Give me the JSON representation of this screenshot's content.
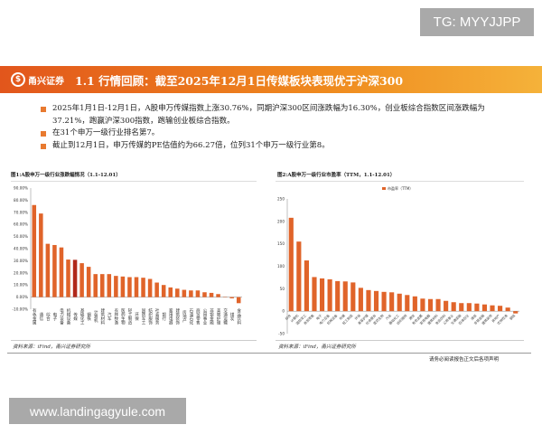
{
  "watermark_top": "TG: MYYJJPP",
  "watermark_bottom": "www.landingagyule.com",
  "header": {
    "logo_text": "甬兴证券",
    "logo_glyph": "$",
    "title": "1.1 行情回顾：截至2025年12月1日传媒板块表现优于沪深300"
  },
  "bullets": [
    "2025年1月1日-12月1日，A股申万传媒指数上涨30.76%，同期沪深300区间涨跌幅为16.30%，创业板综合指数区间涨跌幅为37.21%，跑赢沪深300指数，跑输创业板综合指数。",
    "在31个申万一级行业排名第7。",
    "截止到12月1日，申万传媒的PE估值约为66.27倍，位列31个申万一级行业第8。"
  ],
  "footer": "请务必阅读报告正文后各项声明",
  "colors": {
    "bar": "#e0642a",
    "highlight": "#b0281a",
    "header_start": "#e2561c",
    "header_end": "#f5b23a"
  },
  "chart_data": [
    {
      "type": "bar",
      "title": "图1:A股申万一级行业涨跌幅情况（1.1-12.01）",
      "source": "资料来源：iFind，甬兴证券研究所",
      "ylim": [
        -10,
        90
      ],
      "yticks": [
        "-10.00%",
        "0.00%",
        "10.00%",
        "20.00%",
        "30.00%",
        "40.00%",
        "50.00%",
        "60.00%",
        "70.00%",
        "80.00%",
        "90.00%"
      ],
      "highlight": "传媒",
      "categories": [
        "有色金属",
        "通信",
        "综合",
        "电子",
        "电力设备",
        "机械设备",
        "传媒",
        "基础化工",
        "钢铁",
        "计算机",
        "建筑材料",
        "汽车",
        "农林牧渔",
        "医药生物",
        "轻工制造",
        "环保",
        "国防军工",
        "纺织服饰",
        "社会服务",
        "银行",
        "家用电器",
        "建筑装饰",
        "房地产",
        "石油石化",
        "商贸零售",
        "公用事业",
        "非银金融",
        "美容护理",
        "交通运输",
        "煤炭",
        "食品饮料"
      ],
      "values": [
        76,
        69,
        44,
        43,
        41,
        31,
        30.76,
        28,
        25,
        19,
        19,
        19,
        17.5,
        17,
        16.5,
        16.5,
        16,
        15,
        12,
        10,
        8,
        7,
        6,
        5.5,
        5.5,
        4,
        3.5,
        2.5,
        0.3,
        -1,
        -5
      ]
    },
    {
      "type": "bar",
      "title": "图2:A股申万一级行业市盈率（TTM，1.1-12.01）",
      "source": "资料来源：iFind，甬兴证券研究所",
      "legend": "市盈率（TTM）",
      "legend_position": "top",
      "ylim": [
        -50,
        250
      ],
      "yticks": [
        "-50",
        "0",
        "50",
        "100",
        "150",
        "200",
        "250"
      ],
      "categories": [
        "综合",
        "计算机",
        "国防军工",
        "商贸零售",
        "电子",
        "电力设备",
        "机械设备",
        "传媒",
        "轻工制造",
        "环保",
        "美容护理",
        "社会服务",
        "医药生物",
        "汽车",
        "基础化工",
        "纺织服饰",
        "通信",
        "有色金属",
        "家用电器",
        "建筑材料",
        "食品饮料",
        "公用事业",
        "交通运输",
        "石油石化",
        "煤炭",
        "非银金融",
        "建筑装饰",
        "房地产",
        "农林牧渔",
        "钢铁"
      ],
      "values": [
        208,
        155,
        113,
        76,
        73,
        71,
        67,
        66.27,
        64,
        52,
        47,
        45,
        43,
        42,
        39,
        36,
        33,
        28,
        27,
        27,
        23,
        20,
        18,
        18,
        17,
        15,
        13,
        12,
        8,
        -5
      ]
    }
  ]
}
